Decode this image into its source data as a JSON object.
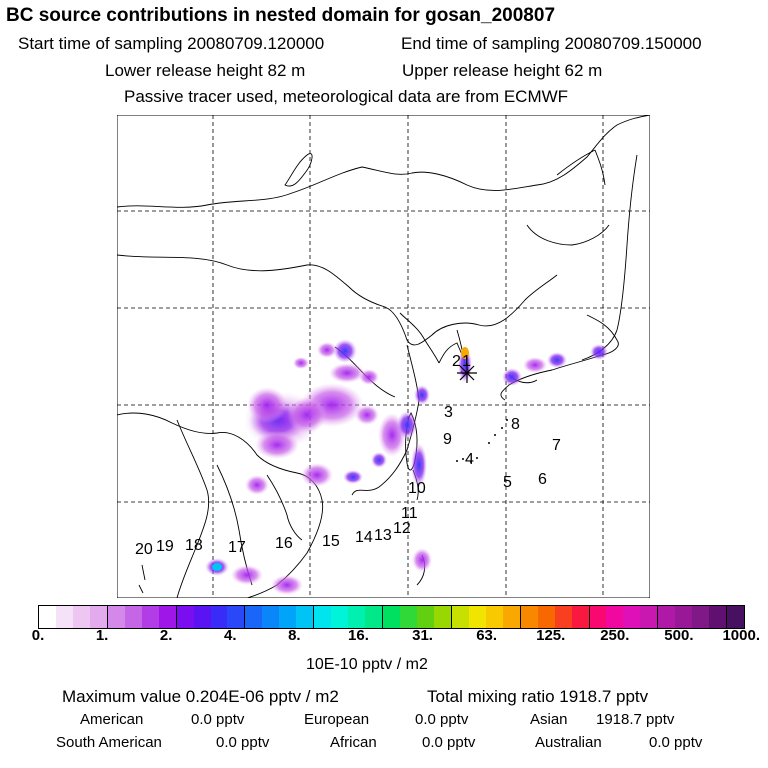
{
  "header": {
    "title": "BC  source contributions in nested domain for gosan_200807",
    "start_time": "Start time of sampling 20080709.120000",
    "end_time": "End time of sampling 20080709.150000",
    "lower_release": "Lower release height   82 m",
    "upper_release": "Upper release height   62 m",
    "tracer_note": "Passive tracer used, meteorological data are from ECMWF"
  },
  "map": {
    "region_labels": [
      "1",
      "2",
      "3",
      "4",
      "5",
      "6",
      "7",
      "8",
      "9",
      "10",
      "11",
      "12",
      "13",
      "14",
      "15",
      "16",
      "17",
      "18",
      "19",
      "20"
    ],
    "label_texts": {
      "l1": "1",
      "l2": "2",
      "l3": "3",
      "l4": "4",
      "l5": "5",
      "l6": "6",
      "l7": "7",
      "l8": "8",
      "l9": "9",
      "l10": "10",
      "l11": "11",
      "l12": "12",
      "l13": "13",
      "l14": "14",
      "l15": "15",
      "l16": "16",
      "l17": "17",
      "l18": "18",
      "l19": "19",
      "l20": "20"
    }
  },
  "colorbar": {
    "tick_labels": [
      "0.",
      "1.",
      "2.",
      "4.",
      "8.",
      "16.",
      "31.",
      "63.",
      "125.",
      "250.",
      "500.",
      "1000."
    ],
    "colors": [
      "#ffffff",
      "#f6e2f8",
      "#eec6f2",
      "#e4aaee",
      "#d488ea",
      "#c466e6",
      "#b23ce6",
      "#9e16e8",
      "#7a0ef0",
      "#5a14f4",
      "#3a2cf8",
      "#2a48f8",
      "#1a66f8",
      "#0a86f8",
      "#00a4f8",
      "#00c4f4",
      "#00e4f0",
      "#00f4d8",
      "#00f0b0",
      "#00e888",
      "#00e060",
      "#30d838",
      "#60d010",
      "#98d800",
      "#c8e000",
      "#f0e400",
      "#f8c800",
      "#f8a800",
      "#f88800",
      "#f86800",
      "#f84020",
      "#f81840",
      "#f80870",
      "#f008a0",
      "#e010b8",
      "#c818b0",
      "#b018a8",
      "#981898",
      "#801888",
      "#601070",
      "#481060"
    ],
    "units": "10E-10 pptv / m2"
  },
  "footer": {
    "maximum": "Maximum value  0.204E-06 pptv / m2",
    "total": "Total mixing ratio     1918.7 pptv",
    "american_label": "American",
    "american_value": "0.0 pptv",
    "european_label": "European",
    "european_value": "0.0 pptv",
    "asian_label": "Asian",
    "asian_value": "1918.7 pptv",
    "south_american_label": "South American",
    "south_american_value": "0.0 pptv",
    "african_label": "African",
    "african_value": "0.0 pptv",
    "australian_label": "Australian",
    "australian_value": "0.0 pptv"
  }
}
